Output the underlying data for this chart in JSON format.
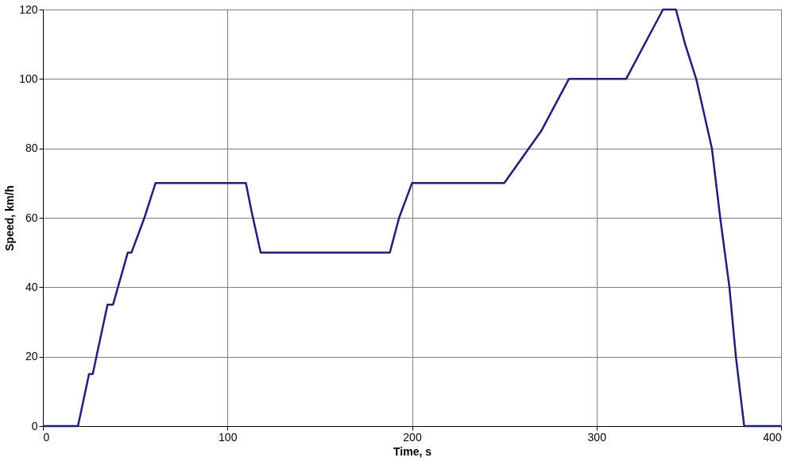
{
  "chart_data": {
    "type": "line",
    "xlabel": "Time, s",
    "ylabel": "Speed, km/h",
    "x": [
      0,
      19,
      25,
      27,
      35,
      38,
      46,
      48,
      55,
      61,
      110,
      113,
      118,
      188,
      193,
      200,
      250,
      270,
      285,
      316,
      336,
      343,
      348,
      354,
      362.5,
      367,
      372,
      375.5,
      380,
      400
    ],
    "series": [
      {
        "color": "#1f1f7a",
        "values": [
          0,
          0,
          15,
          15,
          35,
          35,
          50,
          50,
          60,
          70,
          70,
          62,
          50,
          50,
          60,
          70,
          70,
          85,
          100,
          100,
          120,
          120,
          110,
          100,
          80,
          60,
          40,
          20,
          0,
          0
        ]
      }
    ],
    "xlim": [
      0,
      400
    ],
    "xticks": [
      0,
      100,
      200,
      300,
      400
    ],
    "ylim": [
      0,
      120
    ],
    "yticks": [
      0,
      20,
      40,
      60,
      80,
      100,
      120
    ],
    "grid": true,
    "marker": "none",
    "line_style": "solid"
  }
}
